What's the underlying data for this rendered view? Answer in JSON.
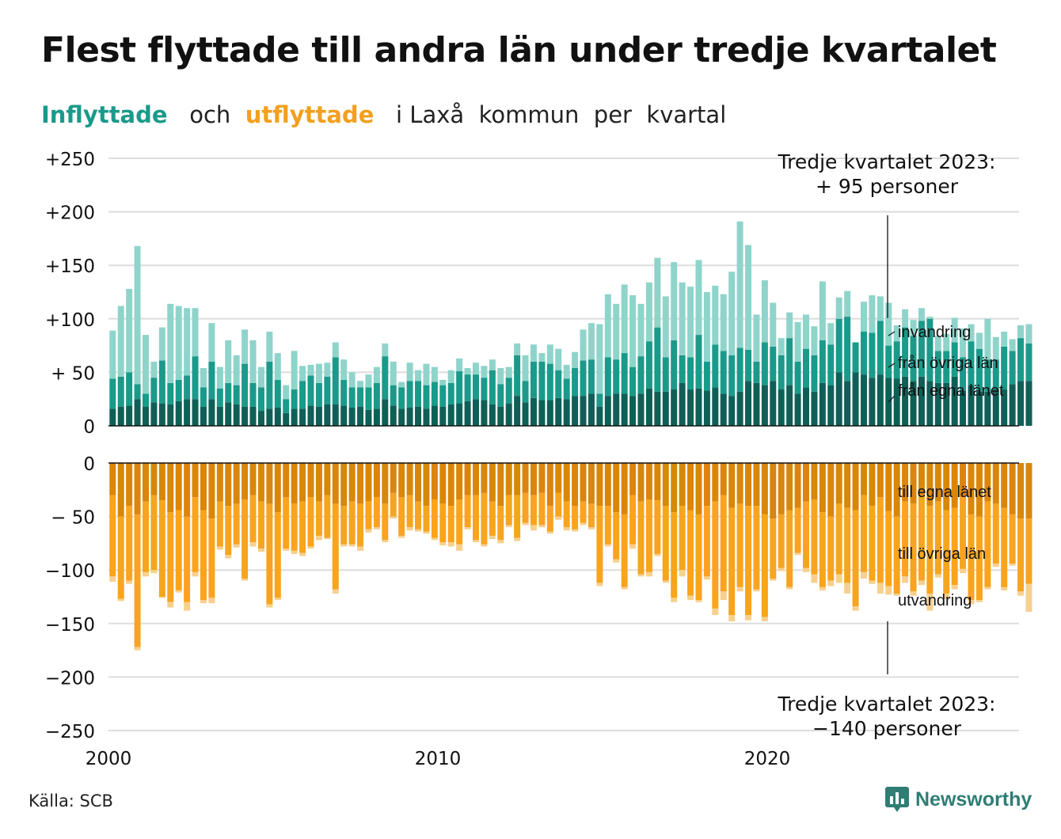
{
  "title": "Flest flyttade till andra län under tredje kvartalet",
  "subtitle": {
    "in_word": "Inflyttade",
    "and_word": "och",
    "out_word": "utflyttade",
    "rest": "i Laxå  kommun  per  kvartal"
  },
  "source": "Källa: SCB",
  "logo": {
    "name": "Newsworthy",
    "icon": "newsworthy-chart-bubble-icon"
  },
  "colors": {
    "in_own": "#0f5f57",
    "in_other": "#1a9a8a",
    "in_immig": "#8fd4cb",
    "out_own": "#d9860a",
    "out_other": "#f8a41e",
    "out_emig": "#f7d08e",
    "grid": "#dddddd",
    "axis": "#111111"
  },
  "annotations": {
    "top": {
      "line1": "Tredje kvartalet 2023:",
      "line2": "+ 95 personer"
    },
    "bottom": {
      "line1": "Tredje kvartalet 2023:",
      "line2": "−140 personer"
    }
  },
  "chart_data": {
    "type": "bar",
    "stacked": true,
    "start": "2000 Q1",
    "period": "quarter",
    "x_ticks": [
      "2000",
      "2010",
      "2020"
    ],
    "top_panel": {
      "y_ticks": [
        "+250",
        "+200",
        "+150",
        "+100",
        "+ 50",
        "0"
      ],
      "ylim": [
        0,
        250
      ],
      "series": [
        {
          "name": "från egna länet",
          "values": [
            16,
            18,
            19,
            25,
            18,
            22,
            21,
            20,
            23,
            25,
            25,
            18,
            25,
            18,
            22,
            20,
            18,
            18,
            14,
            16,
            17,
            12,
            16,
            16,
            19,
            18,
            20,
            20,
            19,
            17,
            18,
            15,
            16,
            25,
            19,
            16,
            17,
            18,
            16,
            19,
            18,
            20,
            21,
            23,
            25,
            24,
            20,
            18,
            21,
            28,
            22,
            26,
            24,
            24,
            26,
            25,
            28,
            28,
            30,
            18,
            28,
            30,
            30,
            28,
            30,
            35,
            32,
            32,
            34,
            40,
            34,
            35,
            33,
            36,
            30,
            28,
            32,
            42,
            40,
            38,
            42,
            34,
            38,
            30,
            36,
            32,
            40,
            38,
            50,
            42,
            50,
            48,
            45,
            48,
            45,
            44,
            46,
            42,
            46,
            42,
            40,
            40,
            46,
            33,
            38,
            32,
            32,
            34,
            34,
            39,
            42,
            42
          ]
        },
        {
          "name": "från övriga län",
          "values": [
            28,
            28,
            31,
            14,
            12,
            23,
            40,
            20,
            20,
            22,
            40,
            18,
            35,
            17,
            18,
            18,
            40,
            22,
            22,
            44,
            26,
            13,
            18,
            26,
            28,
            22,
            26,
            44,
            24,
            19,
            18,
            21,
            24,
            40,
            19,
            20,
            25,
            24,
            22,
            22,
            20,
            20,
            30,
            25,
            23,
            21,
            32,
            21,
            24,
            38,
            20,
            34,
            36,
            34,
            26,
            19,
            26,
            33,
            32,
            12,
            36,
            32,
            38,
            27,
            35,
            44,
            60,
            32,
            46,
            26,
            30,
            50,
            27,
            40,
            40,
            38,
            41,
            29,
            20,
            40,
            32,
            32,
            44,
            30,
            36,
            34,
            40,
            38,
            50,
            60,
            28,
            40,
            42,
            50,
            30,
            35,
            46,
            42,
            52,
            58,
            30,
            30,
            32,
            31,
            41,
            40,
            30,
            28,
            40,
            31,
            40,
            35
          ]
        },
        {
          "name": "invandring",
          "values": [
            45,
            66,
            78,
            129,
            55,
            15,
            31,
            74,
            69,
            63,
            45,
            18,
            36,
            20,
            40,
            28,
            32,
            40,
            19,
            28,
            25,
            13,
            36,
            14,
            10,
            18,
            13,
            14,
            19,
            14,
            6,
            12,
            15,
            12,
            22,
            5,
            17,
            10,
            20,
            14,
            5,
            12,
            12,
            6,
            11,
            11,
            10,
            15,
            10,
            11,
            24,
            16,
            8,
            18,
            20,
            13,
            15,
            29,
            34,
            65,
            59,
            52,
            64,
            67,
            49,
            55,
            65,
            57,
            73,
            68,
            66,
            70,
            65,
            55,
            53,
            78,
            118,
            98,
            44,
            58,
            41,
            16,
            24,
            37,
            32,
            27,
            55,
            20,
            20,
            24,
            0,
            28,
            35,
            23,
            40,
            15,
            17,
            15,
            12,
            2,
            14,
            16,
            23,
            27,
            16,
            15,
            38,
            21,
            14,
            11,
            12,
            18
          ]
        }
      ]
    },
    "bottom_panel": {
      "y_ticks": [
        "0",
        "− 50",
        "−100",
        "−150",
        "−200",
        "−250"
      ],
      "ylim": [
        -250,
        0
      ],
      "series": [
        {
          "name": "till egna länet",
          "values": [
            30,
            50,
            40,
            48,
            36,
            30,
            35,
            46,
            44,
            50,
            32,
            44,
            52,
            36,
            40,
            38,
            34,
            30,
            36,
            38,
            46,
            32,
            38,
            36,
            32,
            36,
            30,
            38,
            40,
            36,
            38,
            36,
            32,
            38,
            28,
            32,
            30,
            36,
            40,
            34,
            38,
            40,
            34,
            30,
            30,
            28,
            36,
            40,
            30,
            30,
            28,
            30,
            28,
            40,
            28,
            36,
            40,
            36,
            38,
            40,
            40,
            46,
            48,
            30,
            36,
            34,
            35,
            40,
            46,
            40,
            44,
            48,
            40,
            36,
            30,
            42,
            38,
            40,
            40,
            48,
            52,
            48,
            44,
            42,
            36,
            34,
            46,
            50,
            38,
            42,
            44,
            30,
            40,
            32,
            45,
            50,
            36,
            38,
            30,
            40,
            36,
            44,
            42,
            32,
            48,
            50,
            36,
            38,
            42,
            48,
            52,
            52
          ]
        },
        {
          "name": "till övriga län",
          "values": [
            76,
            77,
            70,
            124,
            66,
            70,
            90,
            84,
            75,
            80,
            70,
            84,
            74,
            42,
            46,
            38,
            74,
            44,
            44,
            94,
            80,
            48,
            44,
            48,
            46,
            32,
            40,
            80,
            36,
            40,
            40,
            26,
            28,
            34,
            22,
            36,
            30,
            26,
            24,
            36,
            36,
            34,
            42,
            30,
            42,
            48,
            32,
            32,
            28,
            40,
            28,
            28,
            30,
            24,
            22,
            24,
            22,
            20,
            22,
            72,
            36,
            44,
            68,
            46,
            68,
            68,
            50,
            70,
            80,
            60,
            80,
            80,
            66,
            100,
            90,
            100,
            78,
            102,
            78,
            96,
            56,
            50,
            72,
            42,
            62,
            70,
            70,
            60,
            66,
            70,
            90,
            72,
            70,
            80,
            70,
            72,
            70,
            82,
            80,
            82,
            68,
            78,
            72,
            67,
            80,
            78,
            80,
            56,
            74,
            46,
            68,
            61
          ]
        },
        {
          "name": "utvandring",
          "values": [
            5,
            2,
            3,
            3,
            4,
            3,
            1,
            5,
            2,
            8,
            4,
            3,
            5,
            3,
            3,
            3,
            2,
            4,
            3,
            3,
            2,
            2,
            3,
            3,
            2,
            4,
            1,
            4,
            2,
            2,
            4,
            3,
            2,
            2,
            2,
            2,
            3,
            2,
            2,
            2,
            3,
            4,
            6,
            2,
            2,
            2,
            3,
            3,
            2,
            3,
            2,
            5,
            2,
            2,
            3,
            3,
            2,
            2,
            2,
            3,
            2,
            3,
            2,
            4,
            2,
            4,
            2,
            2,
            4,
            6,
            4,
            2,
            3,
            6,
            8,
            6,
            4,
            5,
            2,
            4,
            2,
            3,
            2,
            2,
            4,
            8,
            3,
            5,
            8,
            10,
            4,
            6,
            3,
            10,
            8,
            2,
            6,
            4,
            4,
            16,
            3,
            5,
            4,
            4,
            4,
            2,
            2,
            3,
            3,
            2,
            4,
            26
          ]
        }
      ]
    },
    "labels_top": [
      "invandring",
      "från övriga län",
      "från egna länet"
    ],
    "labels_bottom": [
      "till egna länet",
      "till övriga län",
      "utvandring"
    ]
  }
}
